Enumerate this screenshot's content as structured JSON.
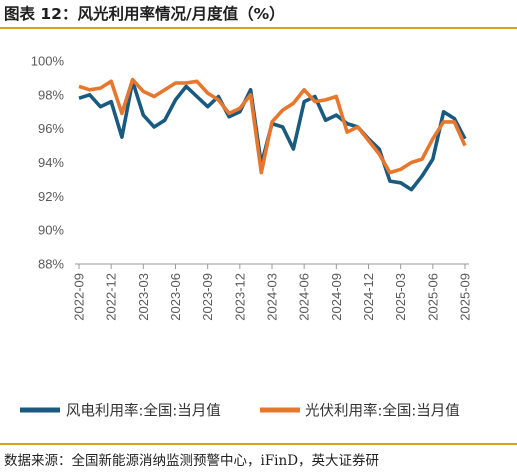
{
  "header": {
    "title": "图表 12：风光利用率情况/月度值（%）"
  },
  "footer": {
    "source": "数据来源：全国新能源消纳监测预警中心，iFinD，英大证券研"
  },
  "chart_data": {
    "type": "line",
    "title": "图表 12：风光利用率情况/月度值（%）",
    "xlabel": "",
    "ylabel": "",
    "ylim": [
      88,
      100
    ],
    "yticks": [
      "100%",
      "98%",
      "96%",
      "94%",
      "92%",
      "90%",
      "88%"
    ],
    "grid": false,
    "legend": "bottom",
    "x": [
      "2022-09",
      "2022-10",
      "2022-11",
      "2022-12",
      "2023-01",
      "2023-02",
      "2023-03",
      "2023-04",
      "2023-05",
      "2023-06",
      "2023-07",
      "2023-08",
      "2023-09",
      "2023-10",
      "2023-11",
      "2023-12",
      "2024-01",
      "2024-02",
      "2024-03",
      "2024-04",
      "2024-05",
      "2024-06",
      "2024-07",
      "2024-08",
      "2024-09",
      "2024-10",
      "2024-11",
      "2024-12",
      "2025-01",
      "2025-02",
      "2025-03",
      "2025-04",
      "2025-05",
      "2025-06",
      "2025-07",
      "2025-08",
      "2025-09"
    ],
    "xtick_labels": [
      "2022-09",
      "2022-12",
      "2023-03",
      "2023-06",
      "2023-09",
      "2023-12",
      "2024-03",
      "2024-06",
      "2024-09",
      "2024-12",
      "2025-03",
      "2025-06",
      "2025-09"
    ],
    "series": [
      {
        "name": "风电利用率:全国:当月值",
        "color": "#1a5a80",
        "values": [
          97.8,
          98.0,
          97.3,
          97.6,
          95.5,
          98.8,
          96.8,
          96.1,
          96.5,
          97.7,
          98.5,
          97.9,
          97.3,
          97.9,
          96.7,
          97.0,
          98.3,
          93.9,
          96.3,
          96.1,
          94.8,
          97.6,
          97.9,
          96.5,
          96.8,
          96.3,
          96.1,
          95.4,
          94.8,
          92.9,
          92.8,
          92.4,
          93.2,
          94.2,
          97.0,
          96.6,
          95.4
        ]
      },
      {
        "name": "光伏利用率:全国:当月值",
        "color": "#e8772e",
        "values": [
          98.5,
          98.3,
          98.4,
          98.8,
          96.9,
          98.9,
          98.2,
          97.9,
          98.3,
          98.7,
          98.7,
          98.8,
          98.1,
          97.7,
          96.9,
          97.2,
          98.0,
          93.4,
          96.4,
          97.1,
          97.5,
          98.3,
          97.6,
          97.7,
          97.9,
          95.8,
          96.1,
          95.3,
          94.5,
          93.4,
          93.6,
          94.0,
          94.2,
          95.4,
          96.4,
          96.4,
          95.0
        ]
      }
    ]
  }
}
